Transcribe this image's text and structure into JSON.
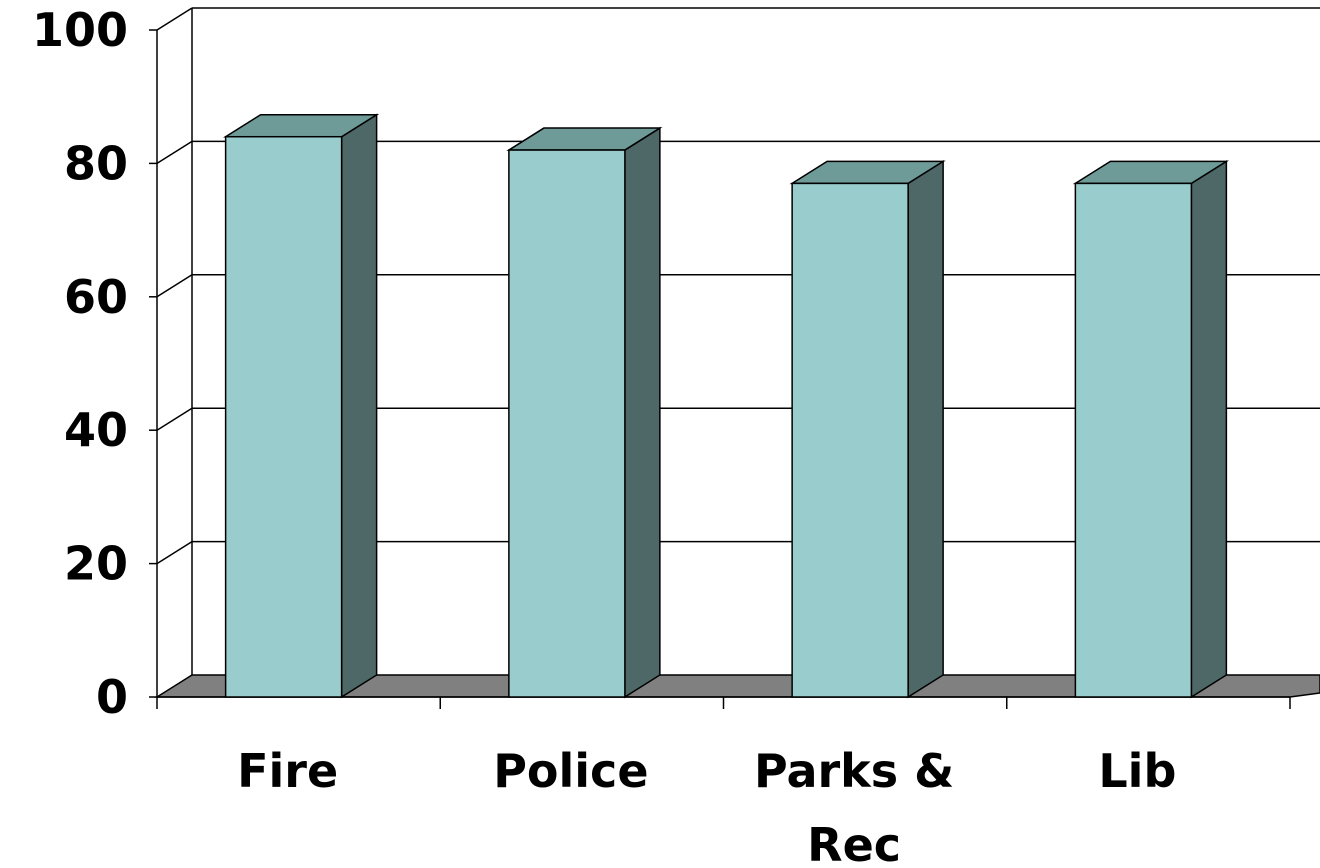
{
  "chart_data": {
    "type": "bar",
    "style": "3d-column",
    "categories": [
      "Fire",
      "Police",
      "Parks & Rec",
      "Lib"
    ],
    "category_label_lines": [
      [
        "Fire"
      ],
      [
        "Police"
      ],
      [
        "Parks &",
        "Rec"
      ],
      [
        "Lib"
      ]
    ],
    "values": [
      84,
      82,
      77,
      77
    ],
    "ylim": [
      0,
      100
    ],
    "yticks": [
      0,
      20,
      40,
      60,
      80,
      100
    ],
    "grid": true,
    "legend": "none",
    "title": "",
    "xlabel": "",
    "ylabel": "",
    "colors": {
      "bar_front": "#99CCCC",
      "bar_top": "#6E9A98",
      "bar_side": "#4E6868",
      "floor": "#808080",
      "grid": "#000000",
      "background": "#FFFFFF"
    }
  }
}
